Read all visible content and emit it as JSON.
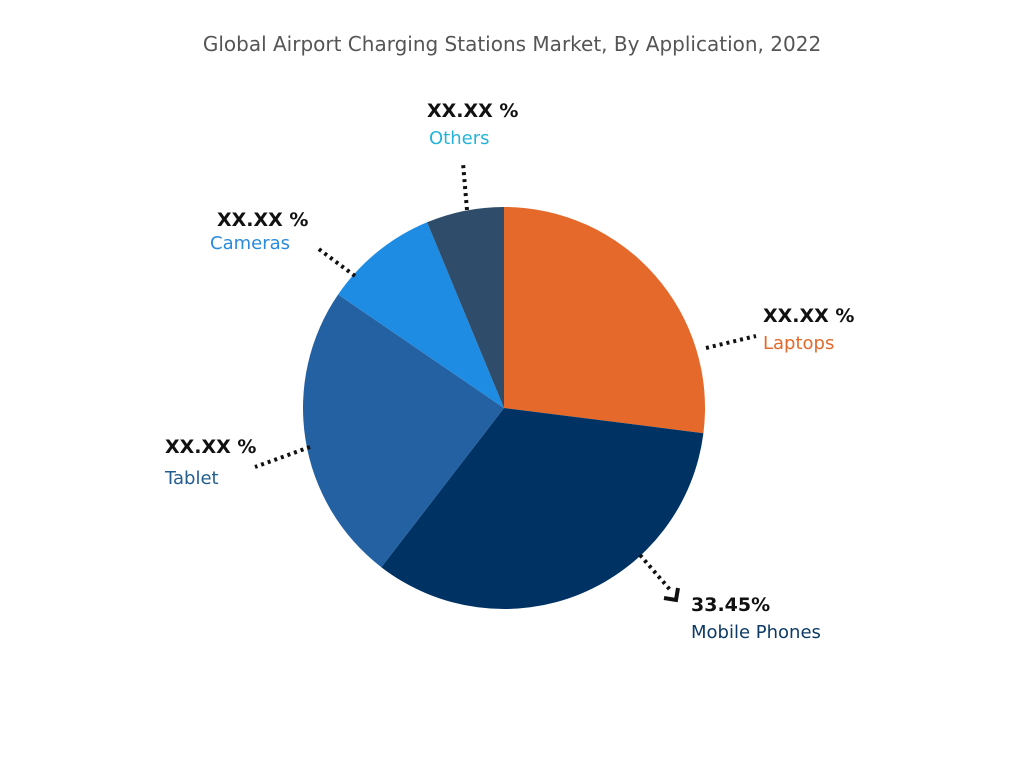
{
  "chart_data": {
    "type": "pie",
    "title": "Global Airport Charging Stations Market, By Application, 2022",
    "categories": [
      "Laptops",
      "Mobile Phones",
      "Tablet",
      "Cameras",
      "Others"
    ],
    "values": [
      27.0,
      33.45,
      24.1,
      9.2,
      6.25
    ],
    "data_labels": [
      "XX.XX %",
      "33.45%",
      "XX.XX %",
      "XX.XX %",
      "XX.XX %"
    ],
    "colors": [
      "#E4692A",
      "#003263",
      "#2461A3",
      "#1E8CE3",
      "#2F4D6B"
    ],
    "label_colors": [
      "#E4692A",
      "#0D3A66",
      "#235E8F",
      "#2B8BDB",
      "#25B4D8"
    ],
    "start_angle": "top, clockwise",
    "legend": "none"
  }
}
